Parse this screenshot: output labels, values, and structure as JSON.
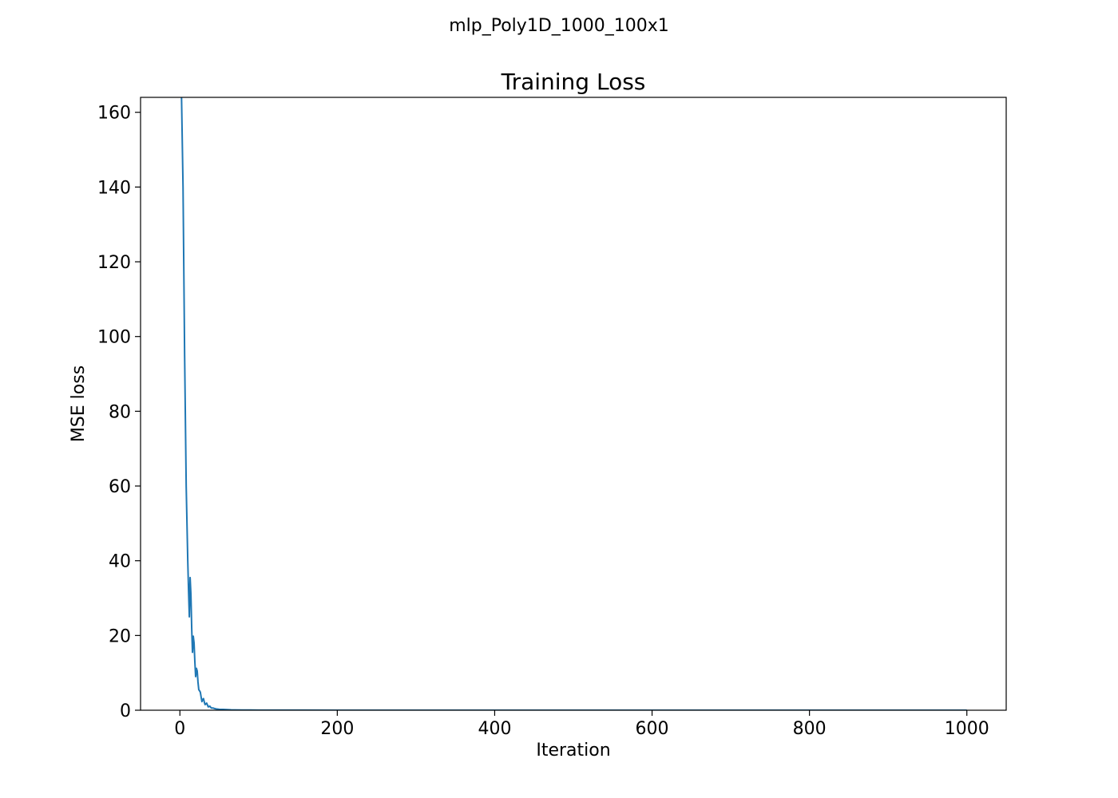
{
  "figure": {
    "suptitle": "mlp_Poly1D_1000_100x1"
  },
  "chart_data": {
    "type": "line",
    "title": "Training Loss",
    "xlabel": "Iteration",
    "ylabel": "MSE loss",
    "xlim": [
      -50,
      1050
    ],
    "ylim": [
      0,
      164
    ],
    "xticks": [
      0,
      200,
      400,
      600,
      800,
      1000
    ],
    "yticks": [
      0,
      20,
      40,
      60,
      80,
      100,
      120,
      140,
      160
    ],
    "grid": false,
    "series": [
      {
        "color": "#1f77b4",
        "x": [
          0,
          2,
          4,
          6,
          8,
          10,
          11,
          12,
          13,
          14,
          15,
          16,
          17,
          18,
          19,
          20,
          21,
          22,
          23,
          24,
          25,
          26,
          27,
          28,
          29,
          30,
          31,
          32,
          33,
          34,
          35,
          36,
          37,
          38,
          39,
          40,
          42,
          44,
          46,
          48,
          50,
          55,
          60,
          65,
          70,
          80,
          90,
          100,
          120,
          150,
          200,
          300,
          400,
          500,
          600,
          700,
          800,
          900,
          1000
        ],
        "values": [
          200,
          165,
          140,
          95,
          60,
          40,
          32,
          25,
          35.5,
          31,
          22,
          15.5,
          19.8,
          18,
          13,
          9,
          11.2,
          10.5,
          7.5,
          5.5,
          5.2,
          4.8,
          3.5,
          2.3,
          2.9,
          3.1,
          2.2,
          1.5,
          1.7,
          1.9,
          1.4,
          0.9,
          1.0,
          1.1,
          0.8,
          0.6,
          0.6,
          0.45,
          0.35,
          0.3,
          0.25,
          0.2,
          0.15,
          0.1,
          0.08,
          0.05,
          0.04,
          0.03,
          0.02,
          0.02,
          0.01,
          0.01,
          0.01,
          0.01,
          0.01,
          0.01,
          0.01,
          0.01,
          0.01
        ]
      }
    ]
  }
}
